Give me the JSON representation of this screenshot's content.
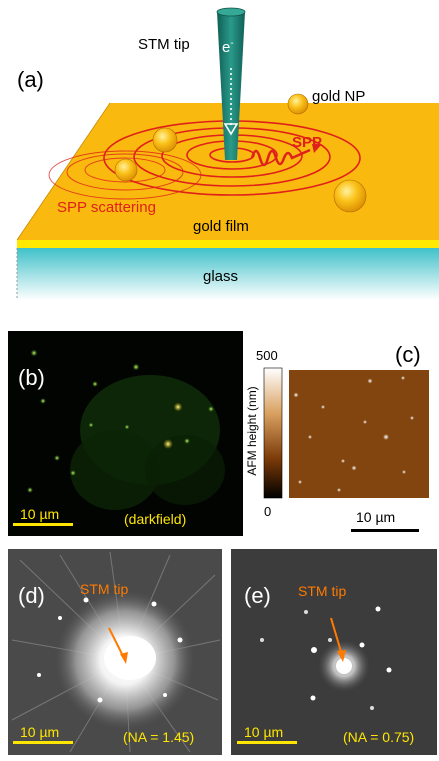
{
  "panel_a": {
    "panel_label": "(a)",
    "stm_tip": "STM tip",
    "electron": "e",
    "electron_sup": "-",
    "gold_np": "gold NP",
    "spp": "SPP",
    "spp_scattering": "SPP scattering",
    "gold_film": "gold film",
    "glass": "glass",
    "colors": {
      "gold": "#f9b90e",
      "tip": "#1c8173",
      "glass": "#56c9cf",
      "wave": "#e0201a"
    }
  },
  "panel_b": {
    "panel_label": "(b)",
    "scale": "10 µm",
    "mode": "(darkfield)"
  },
  "panel_c": {
    "panel_label": "(c)",
    "colorbar_title": "AFM height (nm)",
    "colorbar_max": "500",
    "colorbar_min": "0",
    "scale": "10 µm"
  },
  "panel_d": {
    "panel_label": "(d)",
    "tip_label": "STM tip",
    "scale": "10 µm",
    "na": "(NA = 1.45)"
  },
  "panel_e": {
    "panel_label": "(e)",
    "tip_label": "STM tip",
    "scale": "10 µm",
    "na": "(NA = 0.75)"
  }
}
